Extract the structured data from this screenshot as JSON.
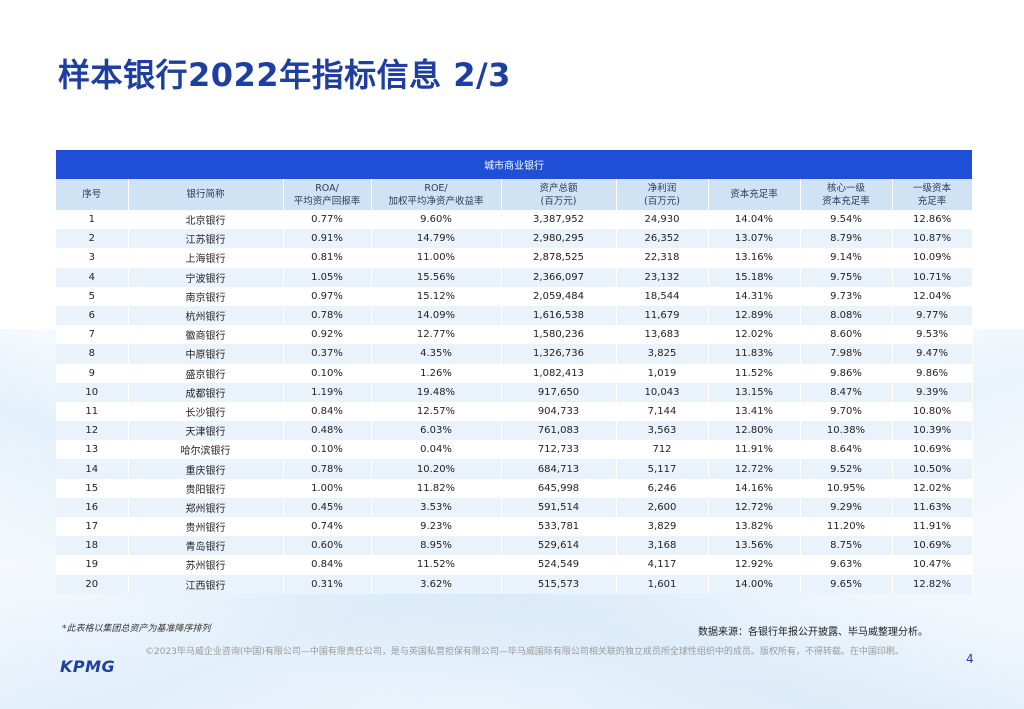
{
  "title": "样本银行2022年指标信息 2/3",
  "table": {
    "group_header": "城市商业银行",
    "columns": [
      "序号",
      "银行简称",
      "ROA/\n平均资产回报率",
      "ROE/\n加权平均净资产收益率",
      "资产总额\n(百万元)",
      "净利润\n(百万元)",
      "资本充足率",
      "核心一级\n资本充足率",
      "一级资本\n充足率"
    ],
    "rows": [
      [
        "1",
        "北京银行",
        "0.77%",
        "9.60%",
        "3,387,952",
        "24,930",
        "14.04%",
        "9.54%",
        "12.86%"
      ],
      [
        "2",
        "江苏银行",
        "0.91%",
        "14.79%",
        "2,980,295",
        "26,352",
        "13.07%",
        "8.79%",
        "10.87%"
      ],
      [
        "3",
        "上海银行",
        "0.81%",
        "11.00%",
        "2,878,525",
        "22,318",
        "13.16%",
        "9.14%",
        "10.09%"
      ],
      [
        "4",
        "宁波银行",
        "1.05%",
        "15.56%",
        "2,366,097",
        "23,132",
        "15.18%",
        "9.75%",
        "10.71%"
      ],
      [
        "5",
        "南京银行",
        "0.97%",
        "15.12%",
        "2,059,484",
        "18,544",
        "14.31%",
        "9.73%",
        "12.04%"
      ],
      [
        "6",
        "杭州银行",
        "0.78%",
        "14.09%",
        "1,616,538",
        "11,679",
        "12.89%",
        "8.08%",
        "9.77%"
      ],
      [
        "7",
        "徽商银行",
        "0.92%",
        "12.77%",
        "1,580,236",
        "13,683",
        "12.02%",
        "8.60%",
        "9.53%"
      ],
      [
        "8",
        "中原银行",
        "0.37%",
        "4.35%",
        "1,326,736",
        "3,825",
        "11.83%",
        "7.98%",
        "9.47%"
      ],
      [
        "9",
        "盛京银行",
        "0.10%",
        "1.26%",
        "1,082,413",
        "1,019",
        "11.52%",
        "9.86%",
        "9.86%"
      ],
      [
        "10",
        "成都银行",
        "1.19%",
        "19.48%",
        "917,650",
        "10,043",
        "13.15%",
        "8.47%",
        "9.39%"
      ],
      [
        "11",
        "长沙银行",
        "0.84%",
        "12.57%",
        "904,733",
        "7,144",
        "13.41%",
        "9.70%",
        "10.80%"
      ],
      [
        "12",
        "天津银行",
        "0.48%",
        "6.03%",
        "761,083",
        "3,563",
        "12.80%",
        "10.38%",
        "10.39%"
      ],
      [
        "13",
        "哈尔滨银行",
        "0.10%",
        "0.04%",
        "712,733",
        "712",
        "11.91%",
        "8.64%",
        "10.69%"
      ],
      [
        "14",
        "重庆银行",
        "0.78%",
        "10.20%",
        "684,713",
        "5,117",
        "12.72%",
        "9.52%",
        "10.50%"
      ],
      [
        "15",
        "贵阳银行",
        "1.00%",
        "11.82%",
        "645,998",
        "6,246",
        "14.16%",
        "10.95%",
        "12.02%"
      ],
      [
        "16",
        "郑州银行",
        "0.45%",
        "3.53%",
        "591,514",
        "2,600",
        "12.72%",
        "9.29%",
        "11.63%"
      ],
      [
        "17",
        "贵州银行",
        "0.74%",
        "9.23%",
        "533,781",
        "3,829",
        "13.82%",
        "11.20%",
        "11.91%"
      ],
      [
        "18",
        "青岛银行",
        "0.60%",
        "8.95%",
        "529,614",
        "3,168",
        "13.56%",
        "8.75%",
        "10.69%"
      ],
      [
        "19",
        "苏州银行",
        "0.84%",
        "11.52%",
        "524,549",
        "4,117",
        "12.92%",
        "9.63%",
        "10.47%"
      ],
      [
        "20",
        "江西银行",
        "0.31%",
        "3.62%",
        "515,573",
        "1,601",
        "14.00%",
        "9.65%",
        "12.82%"
      ]
    ]
  },
  "note": "*此表格以集团总资产为基准降序排列",
  "source": "数据来源：各银行年报公开披露、毕马威整理分析。",
  "logo": "KPMG",
  "footer": "©2023毕马威企业咨询(中国)有限公司—中国有限责任公司，是与英国私营担保有限公司—毕马威国际有限公司相关联的独立成员所全球性组织中的成员。版权所有，不得转载。在中国印刷。",
  "page_number": "4"
}
